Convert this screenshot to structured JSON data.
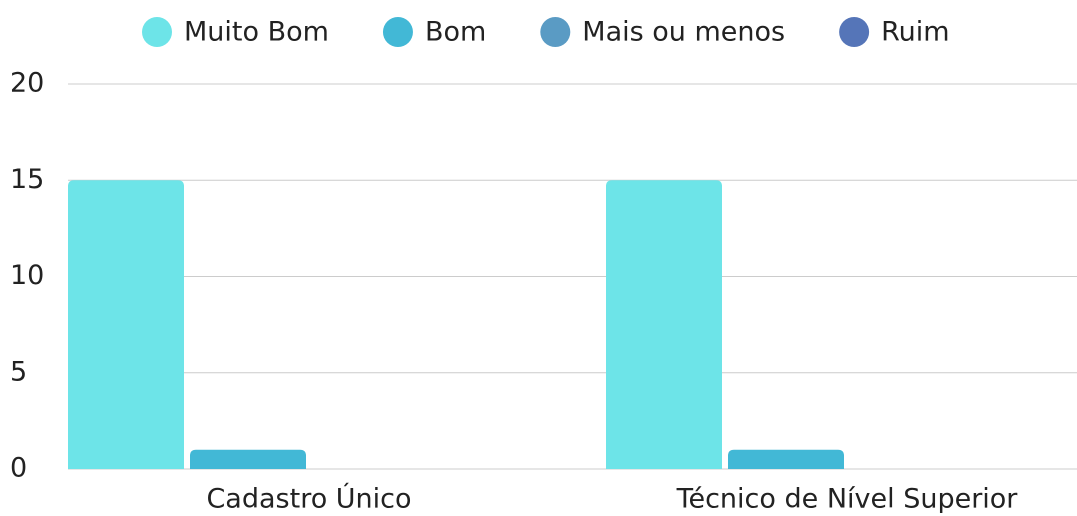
{
  "chart_data": {
    "type": "bar",
    "categories": [
      "Cadastro Único",
      "Técnico de Nível Superior"
    ],
    "series": [
      {
        "name": "Muito Bom",
        "color": "#6de4e8",
        "values": [
          15,
          15
        ]
      },
      {
        "name": "Bom",
        "color": "#42b8d6",
        "values": [
          1,
          1
        ]
      },
      {
        "name": "Mais ou menos",
        "color": "#5a9bc4",
        "values": [
          0,
          0
        ]
      },
      {
        "name": "Ruim",
        "color": "#5575b8",
        "values": [
          0,
          0
        ]
      }
    ],
    "ylim": [
      0,
      20
    ],
    "yticks": [
      0,
      5,
      10,
      15,
      20
    ],
    "grid": true,
    "legend": "top"
  }
}
